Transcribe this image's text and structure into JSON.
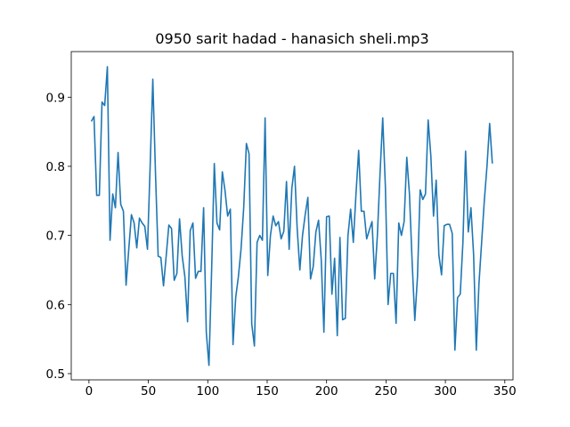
{
  "chart_data": {
    "type": "line",
    "title": "0950 sarit hadad - hanasich sheli.mp3",
    "x": [
      2,
      4.25,
      6.5,
      8.75,
      11,
      13.25,
      15.5,
      17.75,
      20,
      22.25,
      24.5,
      26.75,
      29,
      31.25,
      33.5,
      35.75,
      38,
      40.25,
      42.5,
      44.75,
      47,
      49.25,
      51.5,
      53.75,
      56,
      58.25,
      60.5,
      62.75,
      65,
      67.25,
      69.5,
      71.75,
      74,
      76.25,
      78.5,
      80.75,
      83,
      85.25,
      87.5,
      89.75,
      92,
      94.25,
      96.5,
      98.75,
      101,
      103.25,
      105.5,
      107.75,
      110,
      112.25,
      114.5,
      116.75,
      119,
      121.25,
      123.5,
      125.75,
      128,
      130.25,
      132.5,
      134.75,
      137,
      139.25,
      141.5,
      143.75,
      146,
      148.25,
      150.5,
      152.75,
      155,
      157.25,
      159.5,
      161.75,
      164,
      166.25,
      168.5,
      170.75,
      173,
      175.25,
      177.5,
      179.75,
      182,
      184.25,
      186.5,
      188.75,
      191,
      193.25,
      195.5,
      197.75,
      200,
      202.25,
      204.5,
      206.75,
      209,
      211.25,
      213.5,
      215.75,
      218,
      220.25,
      222.5,
      224.75,
      227,
      229.25,
      231.5,
      233.75,
      236,
      238.25,
      240.5,
      242.75,
      245,
      247.25,
      249.5,
      251.75,
      254,
      256.25,
      258.5,
      260.75,
      263,
      265.25,
      267.5,
      269.75,
      272,
      274.25,
      276.5,
      278.75,
      281,
      283.25,
      285.5,
      287.75,
      290,
      292.25,
      294.5,
      296.75,
      299,
      301.25,
      303.5,
      305.75,
      308,
      310.25,
      312.5,
      314.75,
      317,
      319.25,
      321.5,
      323.75,
      326,
      328.25,
      330.5,
      332.75,
      335,
      337.25,
      339.5
    ],
    "series": [
      {
        "color": "#1f77b4",
        "values": [
          0.865,
          0.872,
          0.758,
          0.758,
          0.893,
          0.888,
          0.944,
          0.693,
          0.76,
          0.74,
          0.82,
          0.745,
          0.735,
          0.628,
          0.68,
          0.73,
          0.718,
          0.682,
          0.725,
          0.718,
          0.713,
          0.68,
          0.8,
          0.926,
          0.79,
          0.67,
          0.668,
          0.627,
          0.67,
          0.715,
          0.71,
          0.635,
          0.645,
          0.724,
          0.67,
          0.64,
          0.575,
          0.707,
          0.718,
          0.638,
          0.648,
          0.648,
          0.74,
          0.56,
          0.512,
          0.65,
          0.804,
          0.718,
          0.708,
          0.792,
          0.765,
          0.728,
          0.738,
          0.542,
          0.61,
          0.64,
          0.68,
          0.74,
          0.833,
          0.818,
          0.572,
          0.54,
          0.69,
          0.7,
          0.693,
          0.87,
          0.642,
          0.7,
          0.728,
          0.714,
          0.72,
          0.695,
          0.706,
          0.778,
          0.68,
          0.768,
          0.8,
          0.71,
          0.65,
          0.7,
          0.73,
          0.755,
          0.637,
          0.655,
          0.705,
          0.722,
          0.665,
          0.56,
          0.727,
          0.728,
          0.615,
          0.667,
          0.555,
          0.697,
          0.578,
          0.58,
          0.7,
          0.738,
          0.69,
          0.76,
          0.823,
          0.735,
          0.735,
          0.695,
          0.708,
          0.72,
          0.637,
          0.7,
          0.79,
          0.87,
          0.77,
          0.6,
          0.645,
          0.645,
          0.573,
          0.718,
          0.7,
          0.72,
          0.813,
          0.76,
          0.662,
          0.577,
          0.64,
          0.766,
          0.752,
          0.76,
          0.867,
          0.815,
          0.728,
          0.78,
          0.672,
          0.643,
          0.714,
          0.716,
          0.716,
          0.703,
          0.534,
          0.61,
          0.615,
          0.69,
          0.822,
          0.705,
          0.74,
          0.672,
          0.534,
          0.63,
          0.69,
          0.75,
          0.8,
          0.862,
          0.804
        ]
      }
    ],
    "xlim": [
      -14.9,
      356.9
    ],
    "xticks": [
      0,
      50,
      100,
      150,
      200,
      250,
      300,
      350
    ],
    "ylim": [
      0.491,
      0.966
    ],
    "yticks": [
      0.5,
      0.6,
      0.7,
      0.8,
      0.9
    ]
  }
}
